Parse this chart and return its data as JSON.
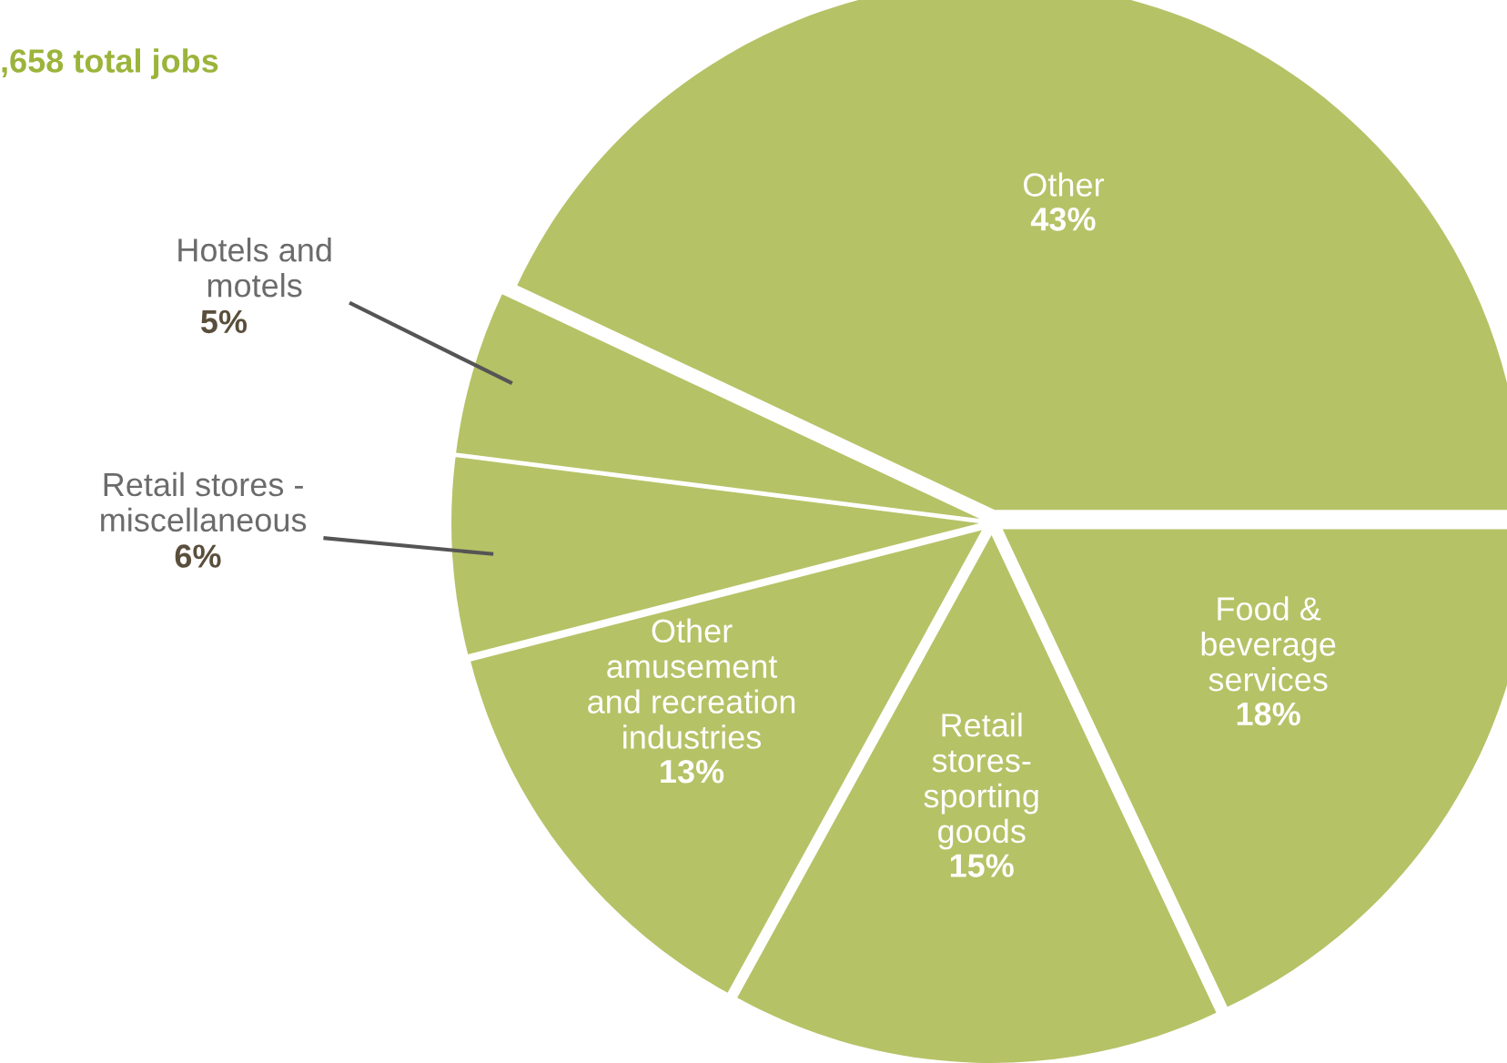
{
  "chart_data": {
    "type": "pie",
    "title": ",658 total jobs",
    "categories": [
      "Other",
      "Food &\nbeverage\nservices",
      "Retail\nstores-\nsporting\ngoods",
      "Other\namusement\nand recreation\nindustries",
      "Retail stores -\nmiscellaneous",
      "Hotels and\nmotels"
    ],
    "values": [
      43,
      18,
      15,
      13,
      6,
      5
    ],
    "value_labels": [
      "43%",
      "18%",
      "15%",
      "13%",
      "6%",
      "5%"
    ],
    "colors": [
      "#b6c266",
      "#b6c266",
      "#b6c266",
      "#b6c266",
      "#b6c266",
      "#b6c266"
    ]
  }
}
